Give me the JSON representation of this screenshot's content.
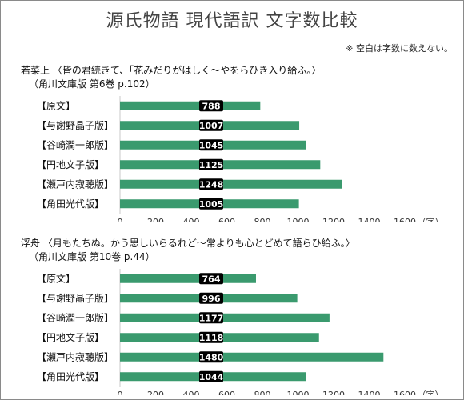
{
  "title": "源氏物語 現代語訳 文字数比較",
  "note": "※ 空白は字数に数えない。",
  "colors": {
    "bar": "#3a9a6e",
    "axis": "#c8c8c8",
    "label_bg": "#000000"
  },
  "chart_data": [
    {
      "type": "bar",
      "orientation": "horizontal",
      "section_title": "若菜上 〈皆の君続きて、「花みだりがはしく～やをらひき入り給ふ。〉",
      "section_source": "（角川文庫版 第6巻 p.102）",
      "categories": [
        "【原文】",
        "【与謝野晶子版】",
        "【谷崎潤一郎版】",
        "【円地文子版】",
        "【瀬戸内寂聴版】",
        "【角田光代版】"
      ],
      "values": [
        788,
        1007,
        1045,
        1125,
        1248,
        1005
      ],
      "xlim": [
        0,
        1800
      ],
      "xticks": [
        "0",
        "200",
        "400",
        "600",
        "800",
        "1000",
        "1200",
        "1400",
        "1600"
      ],
      "unit": "（字）"
    },
    {
      "type": "bar",
      "orientation": "horizontal",
      "section_title": "浮舟 〈月もたちぬ。かう思しいらるれど～常よりも心とどめて語らひ給ふ。〉",
      "section_source": "（角川文庫版 第10巻 p.44）",
      "categories": [
        "【原文】",
        "【与謝野晶子版】",
        "【谷崎潤一郎版】",
        "【円地文子版】",
        "【瀬戸内寂聴版】",
        "【角田光代版】"
      ],
      "values": [
        764,
        996,
        1177,
        1118,
        1480,
        1044
      ],
      "xlim": [
        0,
        1800
      ],
      "xticks": [
        "0",
        "200",
        "400",
        "600",
        "800",
        "1000",
        "1200",
        "1400",
        "1600"
      ],
      "unit": "（字）"
    }
  ]
}
